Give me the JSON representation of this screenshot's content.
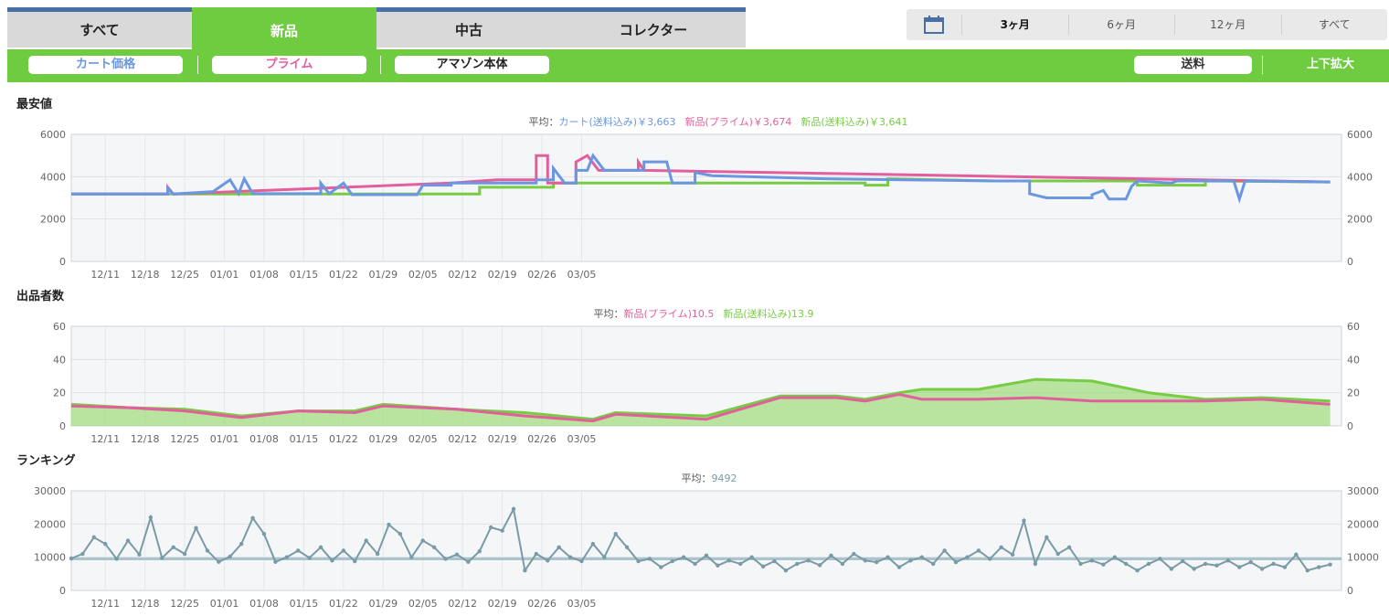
{
  "tabs": [
    "すべて",
    "新品",
    "中古",
    "コレクター"
  ],
  "tab_colors": [
    "#4a6fa5",
    "#6fcc40",
    "#e8682a",
    "#6e9aa8"
  ],
  "active_tab": 1,
  "ranges": [
    "3ヶ月",
    "6ヶ月",
    "12ヶ月",
    "すべて"
  ],
  "active_range": 0,
  "filters": {
    "cart": "カート価格",
    "prime": "プライム",
    "amazon": "アマゾン本体",
    "shipping": "送料",
    "zoom": "上下拡大"
  },
  "colors": {
    "cart": "#6a97e0",
    "prime": "#e25f9c",
    "new": "#77cc44",
    "amazon": "#222222",
    "rank": "#7a9aa6"
  },
  "x_labels": [
    "12/11",
    "12/18",
    "12/25",
    "01/01",
    "01/08",
    "01/15",
    "01/22",
    "01/29",
    "02/05",
    "02/12",
    "02/19",
    "02/26",
    "03/05"
  ],
  "price_chart": {
    "title": "最安値",
    "avg_prefix": "平均：",
    "avg_cart": "カート(送料込み)￥3,663",
    "avg_prime": "新品(プライム)￥3,674",
    "avg_new": "新品(送料込み)￥3,641",
    "yticks": [
      "6000",
      "4000",
      "2000",
      "0"
    ]
  },
  "offers_chart": {
    "title": "出品者数",
    "avg_prefix": "平均：",
    "avg_prime": "新品(プライム)10.5",
    "avg_new": "新品(送料込み)13.9",
    "yticks": [
      "60",
      "40",
      "20",
      "0"
    ]
  },
  "rank_chart": {
    "title": "ランキング",
    "avg_prefix": "平均：",
    "avg_value": "9492",
    "yticks": [
      "30000",
      "20000",
      "10000",
      "0"
    ]
  },
  "chart_data": [
    {
      "type": "line",
      "title": "最安値",
      "x_unit": "days since 12/05",
      "ylim": [
        0,
        6000
      ],
      "grid": true,
      "series": [
        {
          "name": "カート(送料込み)",
          "points": [
            [
              0,
              3180
            ],
            [
              17,
              3180
            ],
            [
              17,
              3450
            ],
            [
              18,
              3180
            ],
            [
              25,
              3300
            ],
            [
              28,
              3850
            ],
            [
              29.5,
              3200
            ],
            [
              30.5,
              3900
            ],
            [
              32,
              3200
            ],
            [
              44,
              3200
            ],
            [
              44,
              3700
            ],
            [
              45.5,
              3200
            ],
            [
              48,
              3700
            ],
            [
              49.5,
              3150
            ],
            [
              61,
              3150
            ],
            [
              62,
              3600
            ],
            [
              67,
              3600
            ],
            [
              67,
              3700
            ],
            [
              82,
              3700
            ],
            [
              82,
              3850
            ],
            [
              85,
              3850
            ],
            [
              85,
              4400
            ],
            [
              87,
              3700
            ],
            [
              89,
              3700
            ],
            [
              89,
              4300
            ],
            [
              91,
              4300
            ],
            [
              92,
              5000
            ],
            [
              94,
              4300
            ],
            [
              101,
              4300
            ],
            [
              101,
              4700
            ],
            [
              105,
              4700
            ],
            [
              106,
              3700
            ],
            [
              110,
              3700
            ],
            [
              110,
              4200
            ],
            [
              113,
              4050
            ],
            [
              133,
              3900
            ],
            [
              163,
              3800
            ],
            [
              169,
              3800
            ],
            [
              169,
              3200
            ],
            [
              172,
              3000
            ],
            [
              180,
              3000
            ],
            [
              180,
              3150
            ],
            [
              182,
              3350
            ],
            [
              183,
              2950
            ],
            [
              186,
              2950
            ],
            [
              187,
              3550
            ],
            [
              188,
              3800
            ],
            [
              194,
              3700
            ],
            [
              195,
              3800
            ],
            [
              205,
              3800
            ],
            [
              206,
              2950
            ],
            [
              207,
              3800
            ],
            [
              222,
              3750
            ]
          ]
        },
        {
          "name": "新品(プライム)",
          "points": [
            [
              0,
              3180
            ],
            [
              17,
              3180
            ],
            [
              17,
              3500
            ],
            [
              18,
              3180
            ],
            [
              67,
              3700
            ],
            [
              75,
              3850
            ],
            [
              82,
              3850
            ],
            [
              82,
              5000
            ],
            [
              84,
              5000
            ],
            [
              84,
              3700
            ],
            [
              89,
              3700
            ],
            [
              89,
              4700
            ],
            [
              91,
              5000
            ],
            [
              93,
              4300
            ],
            [
              100,
              4300
            ],
            [
              100,
              4700
            ],
            [
              101,
              4300
            ],
            [
              222,
              3750
            ]
          ]
        },
        {
          "name": "新品(送料込み)",
          "points": [
            [
              0,
              3180
            ],
            [
              72,
              3180
            ],
            [
              72,
              3500
            ],
            [
              85,
              3500
            ],
            [
              85,
              3700
            ],
            [
              140,
              3700
            ],
            [
              140,
              3600
            ],
            [
              144,
              3600
            ],
            [
              144,
              3900
            ],
            [
              163,
              3800
            ],
            [
              188,
              3800
            ],
            [
              188,
              3600
            ],
            [
              200,
              3600
            ],
            [
              200,
              3800
            ],
            [
              222,
              3750
            ]
          ]
        }
      ]
    },
    {
      "type": "area",
      "title": "出品者数",
      "x_unit": "days since 12/05",
      "ylim": [
        0,
        60
      ],
      "grid": true,
      "series": [
        {
          "name": "新品(プライム)",
          "points": [
            [
              0,
              12
            ],
            [
              10,
              11
            ],
            [
              20,
              9
            ],
            [
              30,
              5
            ],
            [
              40,
              9
            ],
            [
              50,
              8
            ],
            [
              55,
              12
            ],
            [
              68,
              10
            ],
            [
              80,
              6
            ],
            [
              92,
              3
            ],
            [
              96,
              7
            ],
            [
              112,
              4
            ],
            [
              125,
              17
            ],
            [
              135,
              17
            ],
            [
              140,
              15
            ],
            [
              146,
              19
            ],
            [
              150,
              16
            ],
            [
              160,
              16
            ],
            [
              170,
              17
            ],
            [
              180,
              15
            ],
            [
              190,
              15
            ],
            [
              200,
              15
            ],
            [
              210,
              16
            ],
            [
              222,
              13
            ]
          ]
        },
        {
          "name": "新品(送料込み)",
          "points": [
            [
              0,
              13
            ],
            [
              10,
              11
            ],
            [
              20,
              10
            ],
            [
              30,
              6
            ],
            [
              40,
              9
            ],
            [
              50,
              9
            ],
            [
              55,
              13
            ],
            [
              68,
              10
            ],
            [
              80,
              8
            ],
            [
              92,
              4
            ],
            [
              96,
              8
            ],
            [
              112,
              6
            ],
            [
              125,
              18
            ],
            [
              135,
              18
            ],
            [
              140,
              16
            ],
            [
              146,
              20
            ],
            [
              150,
              22
            ],
            [
              160,
              22
            ],
            [
              170,
              28
            ],
            [
              180,
              27
            ],
            [
              190,
              20
            ],
            [
              200,
              16
            ],
            [
              210,
              17
            ],
            [
              222,
              15
            ]
          ]
        }
      ]
    },
    {
      "type": "line",
      "title": "ランキング",
      "x_unit": "days since 12/05",
      "ylim": [
        0,
        30000
      ],
      "grid": true,
      "average": 9492,
      "series": [
        {
          "name": "ランキング",
          "points": [
            [
              0,
              9600
            ],
            [
              2,
              11000
            ],
            [
              4,
              16000
            ],
            [
              6,
              14000
            ],
            [
              8,
              9500
            ],
            [
              10,
              15000
            ],
            [
              12,
              10800
            ],
            [
              14,
              22000
            ],
            [
              16,
              9800
            ],
            [
              18,
              13000
            ],
            [
              20,
              11000
            ],
            [
              22,
              18800
            ],
            [
              24,
              12000
            ],
            [
              26,
              8600
            ],
            [
              28,
              10200
            ],
            [
              30,
              14000
            ],
            [
              32,
              21800
            ],
            [
              34,
              17000
            ],
            [
              36,
              8600
            ],
            [
              38,
              10000
            ],
            [
              40,
              12000
            ],
            [
              42,
              9800
            ],
            [
              44,
              13000
            ],
            [
              46,
              9000
            ],
            [
              48,
              12000
            ],
            [
              50,
              8800
            ],
            [
              52,
              15000
            ],
            [
              54,
              11000
            ],
            [
              56,
              19800
            ],
            [
              58,
              17000
            ],
            [
              60,
              10000
            ],
            [
              62,
              15000
            ],
            [
              64,
              13000
            ],
            [
              66,
              9500
            ],
            [
              68,
              10800
            ],
            [
              70,
              8600
            ],
            [
              72,
              11800
            ],
            [
              74,
              19000
            ],
            [
              76,
              18000
            ],
            [
              78,
              24500
            ],
            [
              80,
              6000
            ],
            [
              82,
              11000
            ],
            [
              84,
              9000
            ],
            [
              86,
              13000
            ],
            [
              88,
              10000
            ],
            [
              90,
              8800
            ],
            [
              92,
              14000
            ],
            [
              94,
              10000
            ],
            [
              96,
              17000
            ],
            [
              98,
              13000
            ],
            [
              100,
              8800
            ],
            [
              102,
              9500
            ],
            [
              104,
              7000
            ],
            [
              106,
              8800
            ],
            [
              108,
              10000
            ],
            [
              110,
              8000
            ],
            [
              112,
              10500
            ],
            [
              114,
              7500
            ],
            [
              116,
              9000
            ],
            [
              118,
              8000
            ],
            [
              120,
              10000
            ],
            [
              122,
              7200
            ],
            [
              124,
              8800
            ],
            [
              126,
              6000
            ],
            [
              128,
              8000
            ],
            [
              130,
              9000
            ],
            [
              132,
              7600
            ],
            [
              134,
              10500
            ],
            [
              136,
              8000
            ],
            [
              138,
              11000
            ],
            [
              140,
              9000
            ],
            [
              142,
              8500
            ],
            [
              144,
              10000
            ],
            [
              146,
              7000
            ],
            [
              148,
              9000
            ],
            [
              150,
              10000
            ],
            [
              152,
              8000
            ],
            [
              154,
              12000
            ],
            [
              156,
              8500
            ],
            [
              158,
              10000
            ],
            [
              160,
              12000
            ],
            [
              162,
              9500
            ],
            [
              164,
              13000
            ],
            [
              166,
              10800
            ],
            [
              168,
              21000
            ],
            [
              170,
              8000
            ],
            [
              172,
              16000
            ],
            [
              174,
              11000
            ],
            [
              176,
              13000
            ],
            [
              178,
              8000
            ],
            [
              180,
              9000
            ],
            [
              182,
              7800
            ],
            [
              184,
              10000
            ],
            [
              186,
              8000
            ],
            [
              188,
              6000
            ],
            [
              190,
              8000
            ],
            [
              192,
              9500
            ],
            [
              194,
              6500
            ],
            [
              196,
              8800
            ],
            [
              198,
              6500
            ],
            [
              200,
              8000
            ],
            [
              202,
              7500
            ],
            [
              204,
              9000
            ],
            [
              206,
              7000
            ],
            [
              208,
              8500
            ],
            [
              210,
              6500
            ],
            [
              212,
              8000
            ],
            [
              214,
              7000
            ],
            [
              216,
              10800
            ],
            [
              218,
              6000
            ],
            [
              220,
              7000
            ],
            [
              222,
              7800
            ]
          ]
        }
      ]
    }
  ]
}
